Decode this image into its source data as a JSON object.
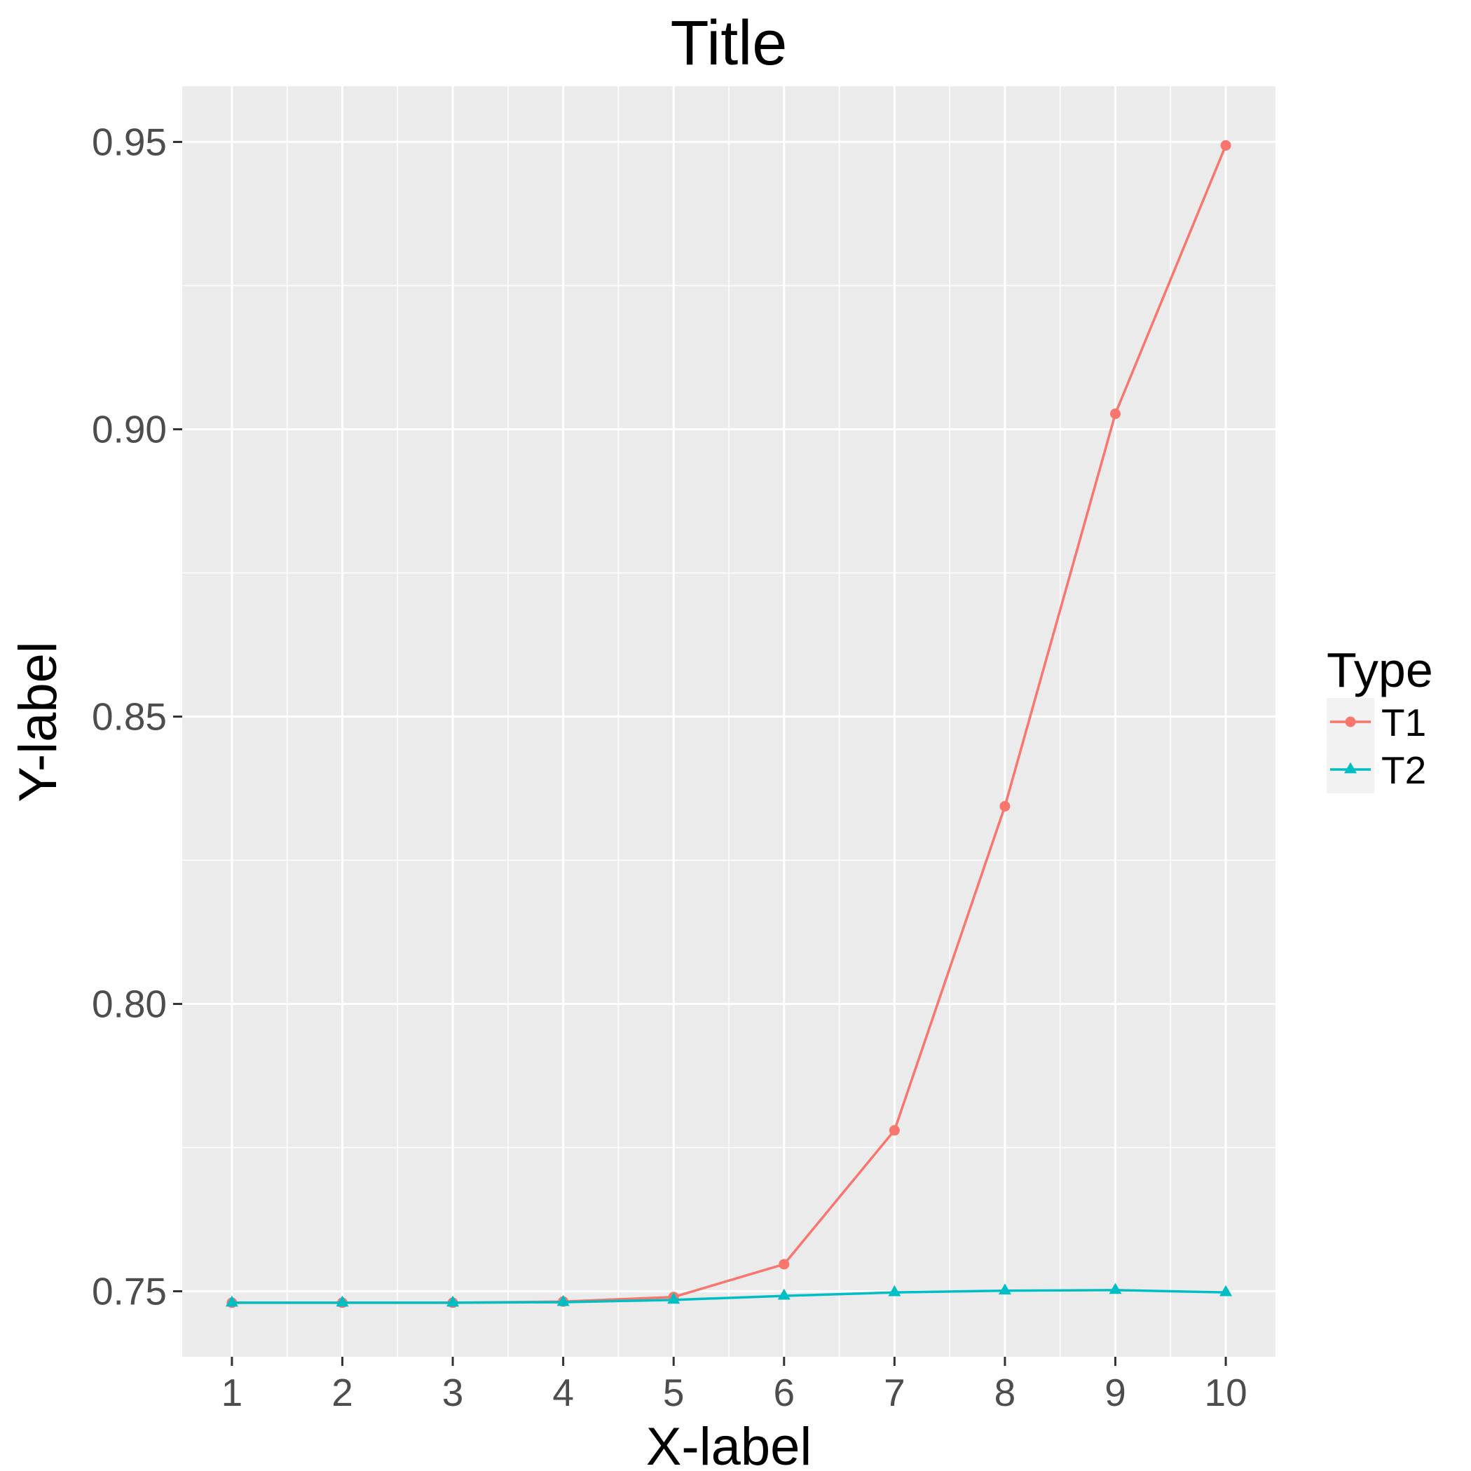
{
  "chart_data": {
    "type": "line",
    "title": "Title",
    "xlabel": "X-label",
    "ylabel": "Y-label",
    "x": [
      1,
      2,
      3,
      4,
      5,
      6,
      7,
      8,
      9,
      10
    ],
    "x_tick_labels": [
      "1",
      "2",
      "3",
      "4",
      "5",
      "6",
      "7",
      "8",
      "9",
      "10"
    ],
    "xlim": [
      0.55,
      10.45
    ],
    "ylim": [
      0.7386,
      0.9597
    ],
    "y_ticks": [
      0.75,
      0.8,
      0.85,
      0.9,
      0.95
    ],
    "y_tick_labels": [
      "0.75",
      "0.80",
      "0.85",
      "0.90",
      "0.95"
    ],
    "grid": true,
    "legend": {
      "title": "Type",
      "position": "right"
    },
    "series": [
      {
        "name": "T1",
        "color": "#F8766D",
        "marker": "circle",
        "values": [
          0.748,
          0.748,
          0.748,
          0.7482,
          0.749,
          0.7547,
          0.778,
          0.8344,
          0.9027,
          0.9494
        ]
      },
      {
        "name": "T2",
        "color": "#00BFC4",
        "marker": "triangle",
        "values": [
          0.748,
          0.748,
          0.748,
          0.7481,
          0.7485,
          0.7492,
          0.7498,
          0.7501,
          0.7502,
          0.7498
        ]
      }
    ]
  }
}
